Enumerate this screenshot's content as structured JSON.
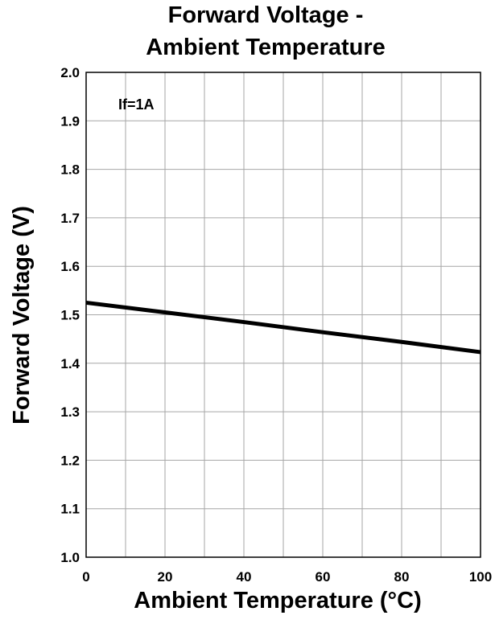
{
  "chart_data": {
    "type": "line",
    "title_lines": [
      "Forward Voltage -",
      "Ambient Temperature"
    ],
    "xlabel": "Ambient Temperature (°C)",
    "ylabel": "Forward Voltage (V)",
    "xlim": [
      0,
      100
    ],
    "ylim": [
      1.0,
      2.0
    ],
    "x_ticks": [
      0,
      20,
      40,
      60,
      80,
      100
    ],
    "x_tick_labels": [
      "0",
      "20",
      "40",
      "60",
      "80",
      "100"
    ],
    "y_ticks": [
      1.0,
      1.1,
      1.2,
      1.3,
      1.4,
      1.5,
      1.6,
      1.7,
      1.8,
      1.9,
      2.0
    ],
    "y_tick_labels": [
      "1.0",
      "1.1",
      "1.2",
      "1.3",
      "1.4",
      "1.5",
      "1.6",
      "1.7",
      "1.8",
      "1.9",
      "2.0"
    ],
    "x_grid_step": 10,
    "y_grid_step": 0.1,
    "grid": true,
    "annotation": "If=1A",
    "series": [
      {
        "x": [
          0,
          20,
          40,
          60,
          80,
          100
        ],
        "y": [
          1.525,
          1.505,
          1.485,
          1.464,
          1.444,
          1.423
        ],
        "color": "#000000"
      }
    ]
  }
}
